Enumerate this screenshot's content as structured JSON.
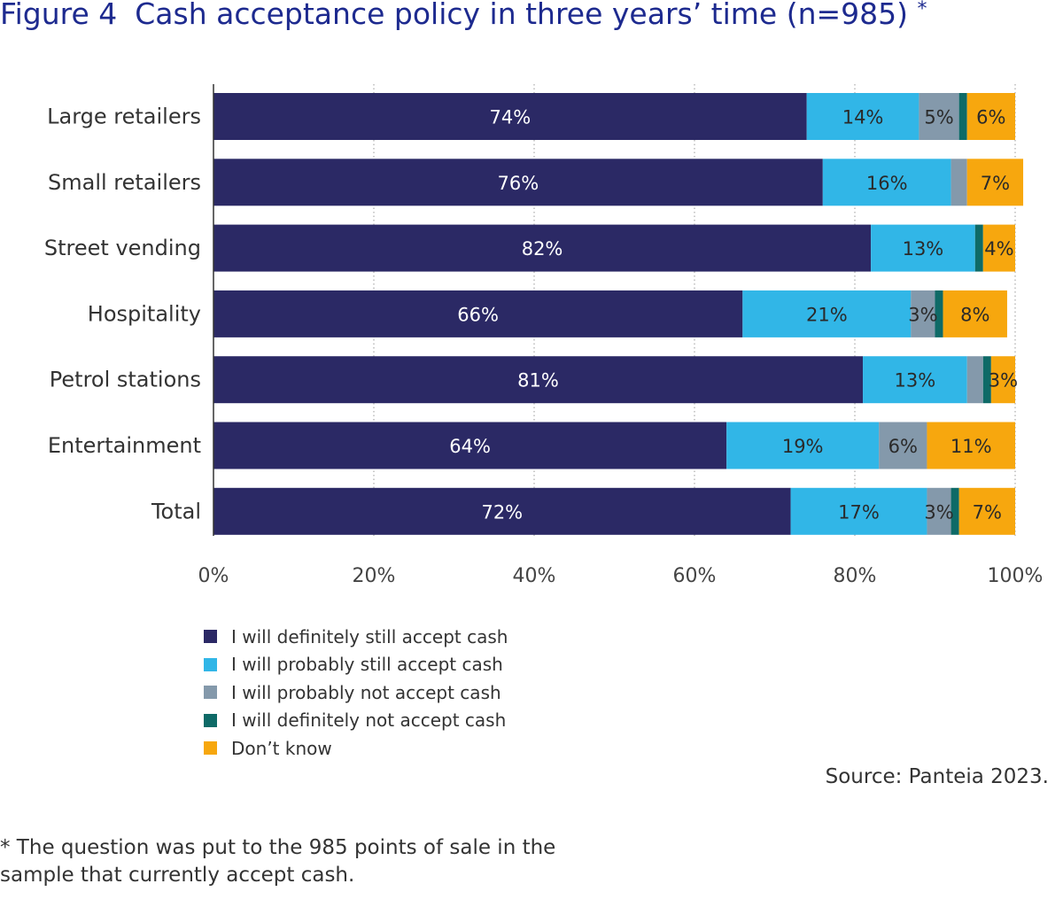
{
  "header": {
    "figure_label": "Figure 4",
    "title": "Cash acceptance policy in three years’ time (n=985)",
    "asterisk": "*"
  },
  "chart_data": {
    "type": "bar",
    "orientation": "horizontal",
    "stacked": true,
    "title": "Cash acceptance policy in three years’ time (n=985)",
    "categories": [
      "Large retailers",
      "Small retailers",
      "Street vending",
      "Hospitality",
      "Petrol stations",
      "Entertainment",
      "Total"
    ],
    "series": [
      {
        "name": "I will definitely still accept cash",
        "color": "#2b2965",
        "values": [
          74,
          76,
          82,
          66,
          81,
          64,
          72
        ],
        "labels": [
          "74%",
          "76%",
          "82%",
          "66%",
          "81%",
          "64%",
          "72%"
        ]
      },
      {
        "name": "I will probably still accept cash",
        "color": "#31b6e7",
        "values": [
          14,
          16,
          13,
          21,
          13,
          19,
          17
        ],
        "labels": [
          "14%",
          "16%",
          "13%",
          "21%",
          "13%",
          "19%",
          "17%"
        ]
      },
      {
        "name": "I will probably not accept cash",
        "color": "#8499ab",
        "values": [
          5,
          2,
          0,
          3,
          2,
          6,
          3
        ],
        "labels": [
          "5%",
          "",
          "",
          "3%",
          "",
          "6%",
          "3%"
        ]
      },
      {
        "name": "I will definitely not accept cash",
        "color": "#0e6a67",
        "values": [
          1,
          0,
          1,
          1,
          1,
          0,
          1
        ],
        "labels": [
          "",
          "",
          "",
          "",
          "",
          "",
          ""
        ]
      },
      {
        "name": "Don’t know",
        "color": "#f7a70e",
        "values": [
          6,
          7,
          4,
          8,
          3,
          11,
          7
        ],
        "labels": [
          "6%",
          "7%",
          "4%",
          "8%",
          "3%",
          "11%",
          "7%"
        ]
      }
    ],
    "xlim": [
      0,
      100
    ],
    "xticks": [
      "0%",
      "20%",
      "40%",
      "60%",
      "80%",
      "100%"
    ],
    "grid": "vertical dotted",
    "legend_position": "bottom-left"
  },
  "source": "Source: Panteia 2023.",
  "footnote": "* The question was put to the 985 points of sale in the sample that currently accept cash."
}
